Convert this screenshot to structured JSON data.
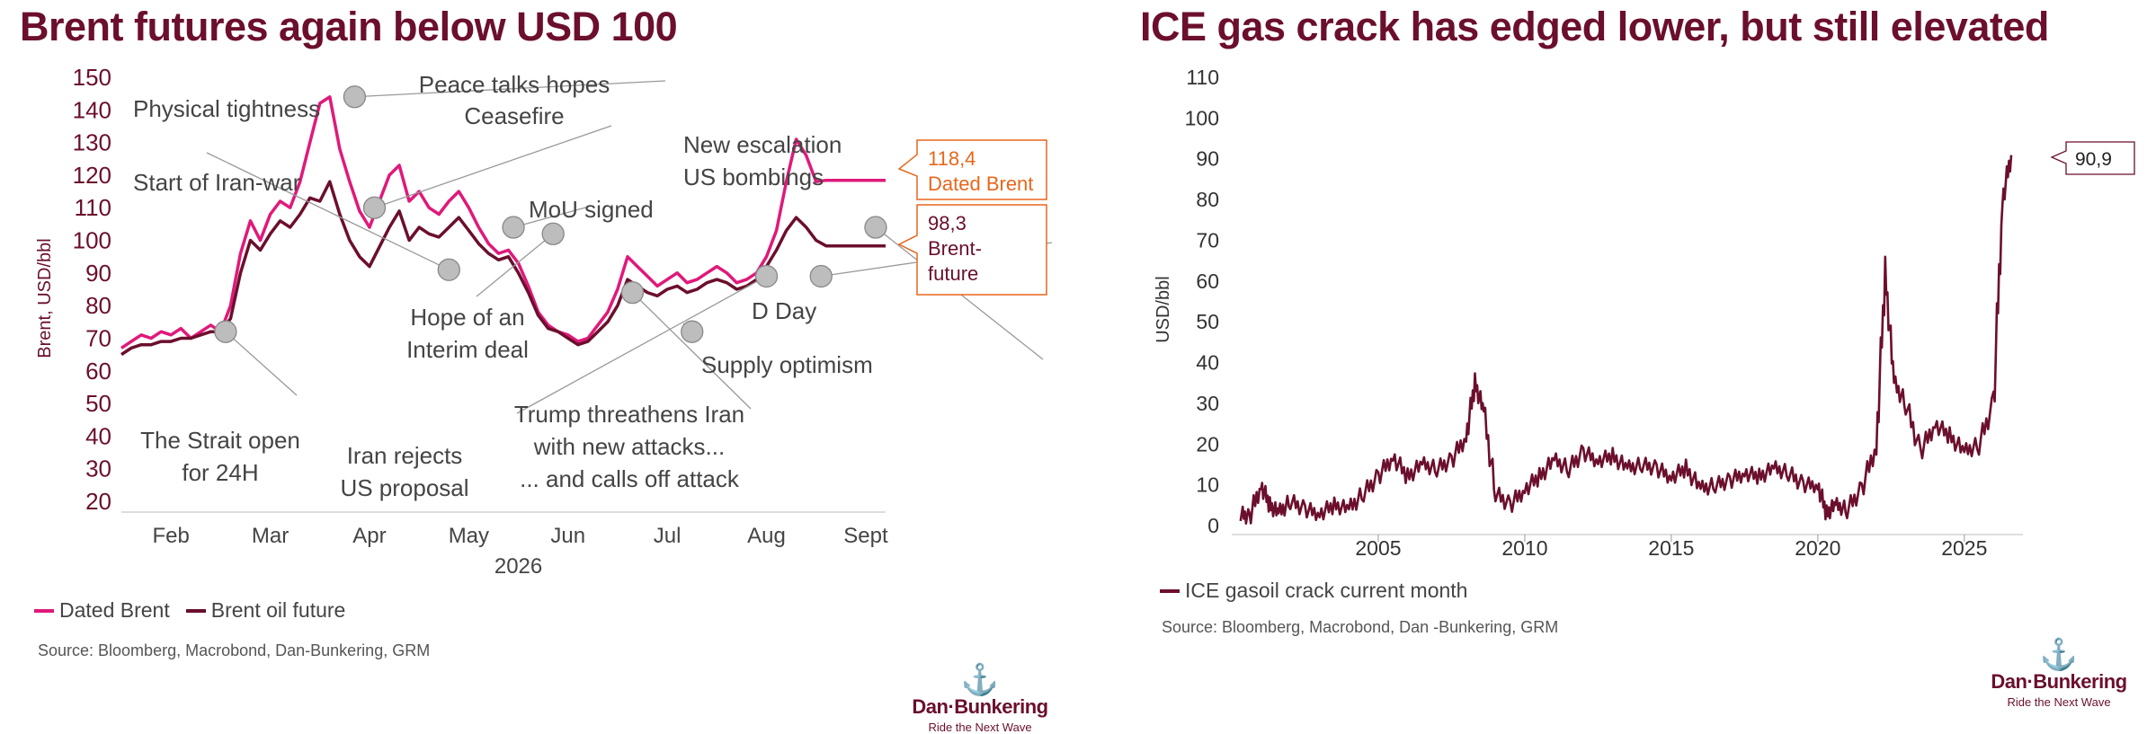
{
  "colors": {
    "dated_brent": "#e0197a",
    "brent_future": "#6b0f2c",
    "title": "#6b0f2c",
    "callout_orange": "#e8671c",
    "gasoil": "#6b0f2c"
  },
  "left": {
    "title": "Brent futures again below USD 100",
    "source": "Source: Bloomberg, Macrobond, Dan-Bunkering, GRM",
    "legend": [
      "Dated Brent",
      "Brent oil future"
    ],
    "callouts": [
      {
        "value": "118,4",
        "label": "Dated Brent"
      },
      {
        "value": "98,3",
        "label": "Brent-",
        "label2": "future"
      }
    ]
  },
  "right": {
    "title": "ICE gas crack has edged lower, but still elevated",
    "source": "Source: Bloomberg, Macrobond, Dan -Bunkering, GRM",
    "legend": [
      "ICE gasoil crack current month"
    ],
    "callout": "90,9"
  },
  "logo": {
    "name": "Dan·Bunkering",
    "tagline": "Ride the Next Wave"
  },
  "chart_data": [
    {
      "type": "line",
      "title": "Brent futures again below USD 100",
      "ylabel": "Brent, USD/bbl",
      "xlabel": "2026",
      "ylim": [
        20,
        150
      ],
      "yticks": [
        20,
        30,
        40,
        50,
        60,
        70,
        80,
        90,
        100,
        110,
        120,
        130,
        140,
        150
      ],
      "xticks": [
        "Feb",
        "Mar",
        "Apr",
        "May",
        "Jun",
        "Jul",
        "Aug",
        "Sept"
      ],
      "series": [
        {
          "name": "Dated Brent",
          "x": [
            0,
            0.1,
            0.2,
            0.3,
            0.4,
            0.5,
            0.6,
            0.7,
            0.8,
            0.9,
            1.0,
            1.1,
            1.2,
            1.3,
            1.4,
            1.5,
            1.6,
            1.7,
            1.8,
            1.9,
            2.0,
            2.1,
            2.2,
            2.3,
            2.4,
            2.5,
            2.6,
            2.7,
            2.8,
            2.9,
            3.0,
            3.1,
            3.2,
            3.3,
            3.4,
            3.5,
            3.6,
            3.7,
            3.8,
            3.9,
            4.0,
            4.1,
            4.2,
            4.3,
            4.4,
            4.5,
            4.6,
            4.7,
            4.8,
            4.9,
            5.0,
            5.1,
            5.2,
            5.3,
            5.4,
            5.5,
            5.6,
            5.7,
            5.8,
            5.9,
            6.0,
            6.1,
            6.2,
            6.3,
            6.4,
            6.5,
            6.6,
            6.7,
            6.8,
            6.9,
            7.0,
            7.1,
            7.2,
            7.3,
            7.4,
            7.5,
            7.6,
            7.7
          ],
          "values": [
            67,
            69,
            71,
            70,
            72,
            71,
            73,
            70,
            72,
            74,
            72,
            80,
            96,
            106,
            100,
            108,
            112,
            110,
            118,
            130,
            142,
            144,
            128,
            118,
            109,
            104,
            112,
            120,
            123,
            112,
            115,
            110,
            108,
            112,
            115,
            110,
            104,
            99,
            96,
            97,
            93,
            86,
            78,
            74,
            72,
            71,
            69,
            70,
            74,
            78,
            85,
            95,
            92,
            89,
            86,
            88,
            90,
            87,
            88,
            90,
            92,
            90,
            87,
            88,
            90,
            95,
            103,
            118,
            131,
            126,
            118,
            118.4,
            118.4,
            118.4,
            118.4,
            118.4,
            118.4,
            118.4
          ]
        },
        {
          "name": "Brent oil future",
          "x": [
            0,
            0.1,
            0.2,
            0.3,
            0.4,
            0.5,
            0.6,
            0.7,
            0.8,
            0.9,
            1.0,
            1.1,
            1.2,
            1.3,
            1.4,
            1.5,
            1.6,
            1.7,
            1.8,
            1.9,
            2.0,
            2.1,
            2.2,
            2.3,
            2.4,
            2.5,
            2.6,
            2.7,
            2.8,
            2.9,
            3.0,
            3.1,
            3.2,
            3.3,
            3.4,
            3.5,
            3.6,
            3.7,
            3.8,
            3.9,
            4.0,
            4.1,
            4.2,
            4.3,
            4.4,
            4.5,
            4.6,
            4.7,
            4.8,
            4.9,
            5.0,
            5.1,
            5.2,
            5.3,
            5.4,
            5.5,
            5.6,
            5.7,
            5.8,
            5.9,
            6.0,
            6.1,
            6.2,
            6.3,
            6.4,
            6.5,
            6.6,
            6.7,
            6.8,
            6.9,
            7.0,
            7.1,
            7.2,
            7.3,
            7.4,
            7.5,
            7.6,
            7.7
          ],
          "values": [
            65,
            67,
            68,
            68,
            69,
            69,
            70,
            70,
            71,
            72,
            72,
            76,
            90,
            100,
            97,
            102,
            106,
            104,
            108,
            113,
            112,
            118,
            108,
            100,
            95,
            92,
            98,
            104,
            109,
            100,
            104,
            102,
            101,
            104,
            107,
            103,
            99,
            96,
            94,
            95,
            90,
            84,
            77,
            73,
            72,
            70,
            68,
            69,
            72,
            75,
            80,
            88,
            86,
            84,
            83,
            85,
            86,
            84,
            85,
            87,
            88,
            87,
            85,
            86,
            88,
            92,
            97,
            103,
            107,
            104,
            100,
            98.3,
            98.3,
            98.3,
            98.3,
            98.3,
            98.3,
            98.3
          ]
        }
      ],
      "annotations": [
        "Physical tightness",
        "Peace talks hopes",
        "Ceasefire",
        "Start of Iran-war",
        "MoU signed",
        "New escalation",
        "US bombings",
        "Hope of an",
        "Interim deal",
        "D Day",
        "Supply optimism",
        "The Strait open",
        "for 24H",
        "Iran rejects",
        "US proposal",
        "Trump threathens Iran",
        "with new attacks...",
        "... and calls off attack"
      ]
    },
    {
      "type": "line",
      "title": "ICE gas crack has edged lower, but still elevated",
      "ylabel": "USD/bbl",
      "ylim": [
        0,
        110
      ],
      "yticks": [
        0,
        10,
        20,
        30,
        40,
        50,
        60,
        70,
        80,
        90,
        100,
        110
      ],
      "xticks": [
        "2005",
        "2010",
        "2015",
        "2020",
        "2025"
      ],
      "series": [
        {
          "name": "ICE gasoil crack current month",
          "x": [
            2000.3,
            2000.6,
            2001.0,
            2001.3,
            2001.6,
            2002.0,
            2002.5,
            2003.0,
            2003.5,
            2004.0,
            2004.5,
            2005.0,
            2005.5,
            2006.0,
            2006.5,
            2007.0,
            2007.5,
            2008.0,
            2008.3,
            2008.6,
            2009.0,
            2009.5,
            2010.0,
            2010.5,
            2011.0,
            2011.5,
            2012.0,
            2012.5,
            2013.0,
            2013.5,
            2014.0,
            2014.5,
            2015.0,
            2015.5,
            2016.0,
            2016.5,
            2017.0,
            2017.5,
            2018.0,
            2018.5,
            2019.0,
            2019.5,
            2020.0,
            2020.3,
            2020.6,
            2021.0,
            2021.5,
            2022.0,
            2022.3,
            2022.6,
            2023.0,
            2023.5,
            2024.0,
            2024.5,
            2025.0,
            2025.5,
            2026.0,
            2026.3,
            2026.6
          ],
          "values": [
            3,
            2,
            10,
            5,
            3,
            6,
            4,
            3,
            5,
            4,
            8,
            12,
            17,
            12,
            15,
            14,
            16,
            22,
            35,
            28,
            8,
            5,
            9,
            12,
            16,
            14,
            18,
            16,
            17,
            14,
            15,
            14,
            12,
            14,
            9,
            10,
            11,
            13,
            12,
            14,
            13,
            10,
            10,
            3,
            5,
            4,
            9,
            20,
            62,
            35,
            30,
            18,
            25,
            22,
            18,
            20,
            30,
            80,
            90.9
          ]
        }
      ]
    }
  ]
}
